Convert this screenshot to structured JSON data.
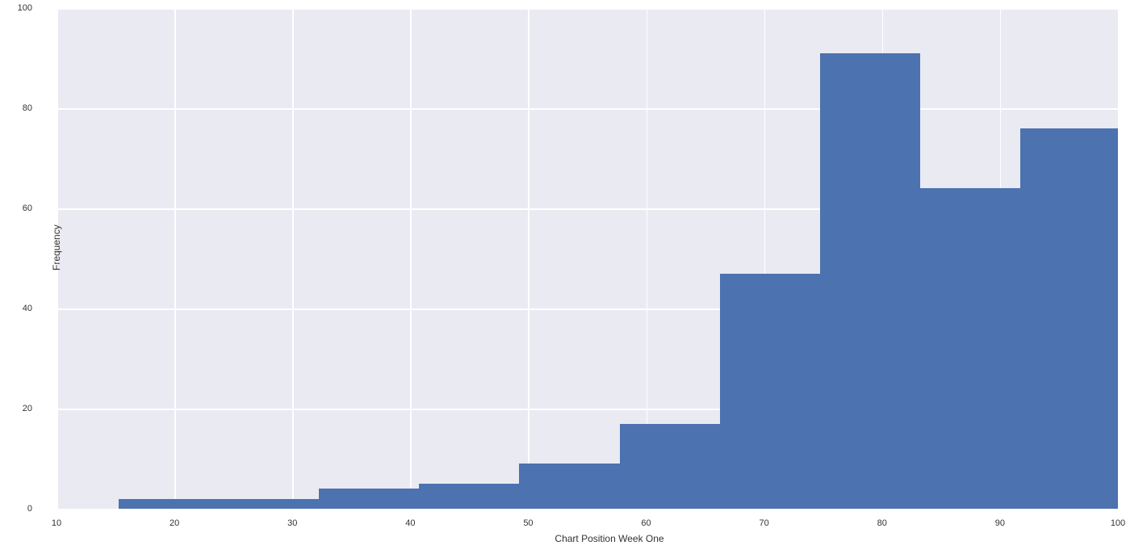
{
  "chart": {
    "type": "histogram",
    "xlabel": "Chart Position Week One",
    "ylabel": "Frequency",
    "xlim": [
      10,
      100
    ],
    "ylim": [
      0,
      100
    ],
    "xtick_step": 10,
    "ytick_step": 20,
    "xticks": [
      10,
      20,
      30,
      40,
      50,
      60,
      70,
      80,
      90,
      100
    ],
    "yticks": [
      0,
      20,
      40,
      60,
      80,
      100
    ],
    "background_color": "#eaeaf2",
    "grid_color": "#ffffff",
    "bar_color": "#4c72b0",
    "label_fontsize": 12,
    "tick_fontsize": 11,
    "tick_color": "#333333",
    "bars": [
      {
        "bin_start": 15.25,
        "bin_end": 23.75,
        "value": 2
      },
      {
        "bin_start": 23.75,
        "bin_end": 32.25,
        "value": 2
      },
      {
        "bin_start": 32.25,
        "bin_end": 40.75,
        "value": 4
      },
      {
        "bin_start": 40.75,
        "bin_end": 49.25,
        "value": 5
      },
      {
        "bin_start": 49.25,
        "bin_end": 57.75,
        "value": 9
      },
      {
        "bin_start": 57.75,
        "bin_end": 66.25,
        "value": 17
      },
      {
        "bin_start": 66.25,
        "bin_end": 74.75,
        "value": 47
      },
      {
        "bin_start": 74.75,
        "bin_end": 83.25,
        "value": 91
      },
      {
        "bin_start": 83.25,
        "bin_end": 91.75,
        "value": 64
      },
      {
        "bin_start": 91.75,
        "bin_end": 100.0,
        "value": 76
      }
    ]
  }
}
